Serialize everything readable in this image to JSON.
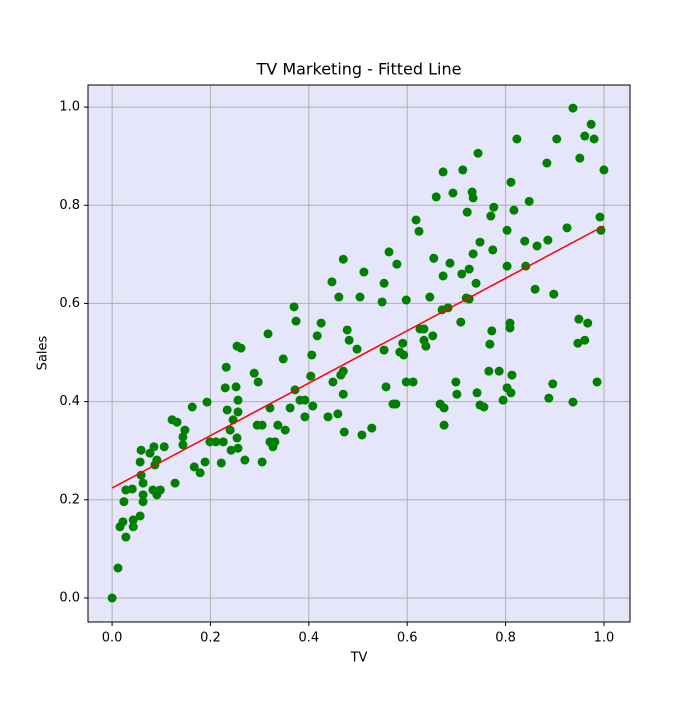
{
  "chart_data": {
    "type": "scatter",
    "title": "TV Marketing - Fitted Line",
    "x_label": "TV",
    "y_label": "Sales",
    "xlim": [
      -0.049,
      1.053
    ],
    "ylim": [
      -0.049,
      1.045
    ],
    "xticks": [
      {
        "value": 0,
        "label": "0.0"
      },
      {
        "value": 0.2,
        "label": "0.2"
      },
      {
        "value": 0.4,
        "label": "0.4"
      },
      {
        "value": 0.6,
        "label": "0.6"
      },
      {
        "value": 0.8,
        "label": "0.8"
      },
      {
        "value": 1,
        "label": "1.0"
      }
    ],
    "yticks": [
      {
        "value": 0,
        "label": "0.0"
      },
      {
        "value": 0.2,
        "label": "0.2"
      },
      {
        "value": 0.4,
        "label": "0.4"
      },
      {
        "value": 0.6,
        "label": "0.6"
      },
      {
        "value": 0.8,
        "label": "0.8"
      },
      {
        "value": 1,
        "label": "1.0"
      }
    ],
    "grid": true,
    "background": "#e6e6fa",
    "series": [
      {
        "color": "#008000",
        "x": [
          0,
          0.012,
          0.016,
          0.024,
          0.022,
          0.028,
          0.028,
          0.041,
          0.043,
          0.043,
          0.057,
          0.059,
          0.059,
          0.063,
          0.063,
          0.063,
          0.057,
          0.077,
          0.083,
          0.085,
          0.087,
          0.091,
          0.091,
          0.098,
          0.106,
          0.122,
          0.128,
          0.132,
          0.144,
          0.144,
          0.148,
          0.163,
          0.167,
          0.179,
          0.189,
          0.193,
          0.199,
          0.211,
          0.222,
          0.226,
          0.23,
          0.232,
          0.234,
          0.24,
          0.242,
          0.246,
          0.252,
          0.254,
          0.254,
          0.256,
          0.256,
          0.262,
          0.256,
          0.27,
          0.289,
          0.295,
          0.297,
          0.305,
          0.305,
          0.317,
          0.321,
          0.321,
          0.327,
          0.331,
          0.337,
          0.348,
          0.352,
          0.362,
          0.37,
          0.372,
          0.374,
          0.382,
          0.392,
          0.392,
          0.404,
          0.406,
          0.408,
          0.417,
          0.425,
          0.439,
          0.447,
          0.449,
          0.459,
          0.461,
          0.465,
          0.47,
          0.47,
          0.47,
          0.472,
          0.478,
          0.482,
          0.498,
          0.504,
          0.508,
          0.512,
          0.528,
          0.549,
          0.553,
          0.553,
          0.557,
          0.563,
          0.571,
          0.577,
          0.579,
          0.585,
          0.591,
          0.593,
          0.598,
          0.598,
          0.612,
          0.618,
          0.624,
          0.626,
          0.634,
          0.634,
          0.638,
          0.646,
          0.652,
          0.654,
          0.659,
          0.667,
          0.671,
          0.673,
          0.673,
          0.675,
          0.675,
          0.683,
          0.687,
          0.693,
          0.699,
          0.701,
          0.709,
          0.711,
          0.713,
          0.72,
          0.722,
          0.726,
          0.726,
          0.732,
          0.734,
          0.734,
          0.74,
          0.742,
          0.744,
          0.748,
          0.748,
          0.756,
          0.766,
          0.768,
          0.77,
          0.772,
          0.774,
          0.776,
          0.787,
          0.795,
          0.803,
          0.803,
          0.803,
          0.809,
          0.809,
          0.811,
          0.811,
          0.813,
          0.817,
          0.823,
          0.839,
          0.841,
          0.848,
          0.86,
          0.864,
          0.884,
          0.886,
          0.888,
          0.896,
          0.898,
          0.904,
          0.925,
          0.937,
          0.937,
          0.947,
          0.949,
          0.951,
          0.961,
          0.961,
          0.967,
          0.974,
          0.98,
          0.986,
          0.992,
          0.994,
          1
        ],
        "values": [
          0,
          0.061,
          0.145,
          0.196,
          0.155,
          0.124,
          0.22,
          0.222,
          0.159,
          0.145,
          0.277,
          0.301,
          0.25,
          0.234,
          0.21,
          0.196,
          0.167,
          0.295,
          0.22,
          0.308,
          0.271,
          0.281,
          0.21,
          0.22,
          0.308,
          0.363,
          0.234,
          0.358,
          0.328,
          0.312,
          0.342,
          0.389,
          0.267,
          0.255,
          0.277,
          0.399,
          0.318,
          0.318,
          0.275,
          0.318,
          0.428,
          0.47,
          0.383,
          0.342,
          0.301,
          0.363,
          0.43,
          0.513,
          0.326,
          0.379,
          0.403,
          0.509,
          0.305,
          0.281,
          0.458,
          0.352,
          0.44,
          0.352,
          0.277,
          0.538,
          0.387,
          0.318,
          0.308,
          0.318,
          0.352,
          0.487,
          0.342,
          0.387,
          0.593,
          0.424,
          0.564,
          0.403,
          0.369,
          0.403,
          0.452,
          0.495,
          0.391,
          0.534,
          0.56,
          0.369,
          0.644,
          0.44,
          0.375,
          0.613,
          0.454,
          0.69,
          0.462,
          0.415,
          0.338,
          0.546,
          0.525,
          0.507,
          0.613,
          0.332,
          0.664,
          0.346,
          0.603,
          0.641,
          0.505,
          0.43,
          0.705,
          0.395,
          0.395,
          0.68,
          0.501,
          0.519,
          0.495,
          0.607,
          0.44,
          0.44,
          0.77,
          0.747,
          0.548,
          0.548,
          0.525,
          0.513,
          0.613,
          0.534,
          0.692,
          0.817,
          0.395,
          0.587,
          0.868,
          0.656,
          0.387,
          0.352,
          0.591,
          0.682,
          0.825,
          0.44,
          0.415,
          0.562,
          0.66,
          0.872,
          0.611,
          0.786,
          0.67,
          0.609,
          0.827,
          0.815,
          0.701,
          0.641,
          0.418,
          0.906,
          0.725,
          0.393,
          0.389,
          0.462,
          0.517,
          0.778,
          0.544,
          0.709,
          0.796,
          0.462,
          0.403,
          0.749,
          0.676,
          0.428,
          0.55,
          0.56,
          0.847,
          0.418,
          0.454,
          0.79,
          0.935,
          0.727,
          0.676,
          0.808,
          0.629,
          0.717,
          0.886,
          0.729,
          0.407,
          0.436,
          0.619,
          0.935,
          0.754,
          0.998,
          0.399,
          0.519,
          0.568,
          0.896,
          0.941,
          0.525,
          0.56,
          0.965,
          0.935,
          0.44,
          0.776,
          0.749,
          0.872
        ]
      }
    ],
    "fit_line": {
      "color": "#ff0000",
      "x": [
        0,
        1
      ],
      "values": [
        0.224,
        0.758
      ]
    }
  }
}
